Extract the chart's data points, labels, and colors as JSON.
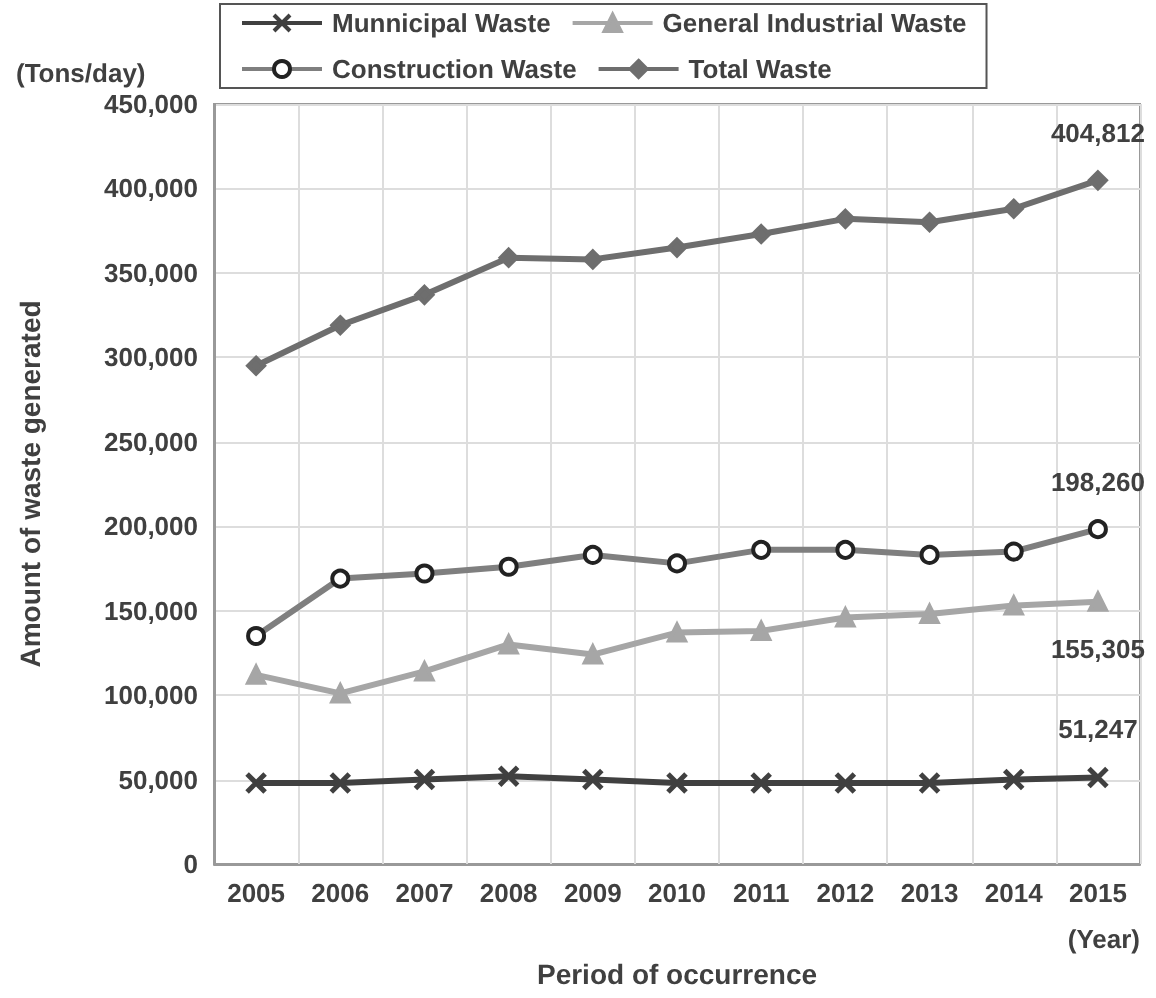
{
  "chart_data": {
    "type": "line",
    "xlabel": "Period of occurrence",
    "ylabel": "Amount of waste generated",
    "annotations": [
      "(Tons/day)",
      "(Year)"
    ],
    "categories": [
      "2005",
      "2006",
      "2007",
      "2008",
      "2009",
      "2010",
      "2011",
      "2012",
      "2013",
      "2014",
      "2015"
    ],
    "series": [
      {
        "name": "Munnicipal Waste",
        "color": "#404040",
        "marker": "cross",
        "values": [
          48000,
          48000,
          50000,
          52000,
          50000,
          48000,
          48000,
          48000,
          48000,
          50000,
          51247
        ],
        "value_labels": [
          null,
          null,
          null,
          null,
          null,
          null,
          null,
          null,
          null,
          null,
          "51,247"
        ]
      },
      {
        "name": "General Industrial Waste",
        "color": "#a6a6a6",
        "marker": "triangle",
        "values": [
          112000,
          101000,
          114000,
          130000,
          124000,
          137000,
          138000,
          146000,
          148000,
          153000,
          155305
        ],
        "value_labels": [
          null,
          null,
          null,
          null,
          null,
          null,
          null,
          null,
          null,
          null,
          "155,305"
        ]
      },
      {
        "name": "Construction Waste",
        "color": "#7f7f7f",
        "marker": "circle",
        "values": [
          135000,
          169000,
          172000,
          176000,
          183000,
          178000,
          186000,
          186000,
          183000,
          185000,
          198260
        ],
        "value_labels": [
          null,
          null,
          null,
          null,
          null,
          null,
          null,
          null,
          null,
          null,
          "198,260"
        ]
      },
      {
        "name": "Total Waste",
        "color": "#6e6e6e",
        "marker": "diamond",
        "values": [
          295000,
          319000,
          337000,
          359000,
          358000,
          365000,
          373000,
          382000,
          380000,
          388000,
          404812
        ],
        "value_labels": [
          null,
          null,
          null,
          null,
          null,
          null,
          null,
          null,
          null,
          null,
          "404,812"
        ]
      }
    ],
    "ylim": [
      0,
      450000
    ],
    "yticks": [
      0,
      {
        "value": 50000,
        "label": "50,000"
      },
      {
        "value": 100000,
        "label": "100,000"
      },
      {
        "value": 150000,
        "label": "150,000"
      },
      {
        "value": 200000,
        "label": "200,000"
      },
      {
        "value": 250000,
        "label": "250,000"
      },
      {
        "value": 300000,
        "label": "300,000"
      },
      {
        "value": 350000,
        "label": "350,000"
      },
      {
        "value": 400000,
        "label": "400,000"
      },
      {
        "value": 450000,
        "label": "450,000"
      }
    ],
    "grid": true,
    "legend": "top"
  }
}
